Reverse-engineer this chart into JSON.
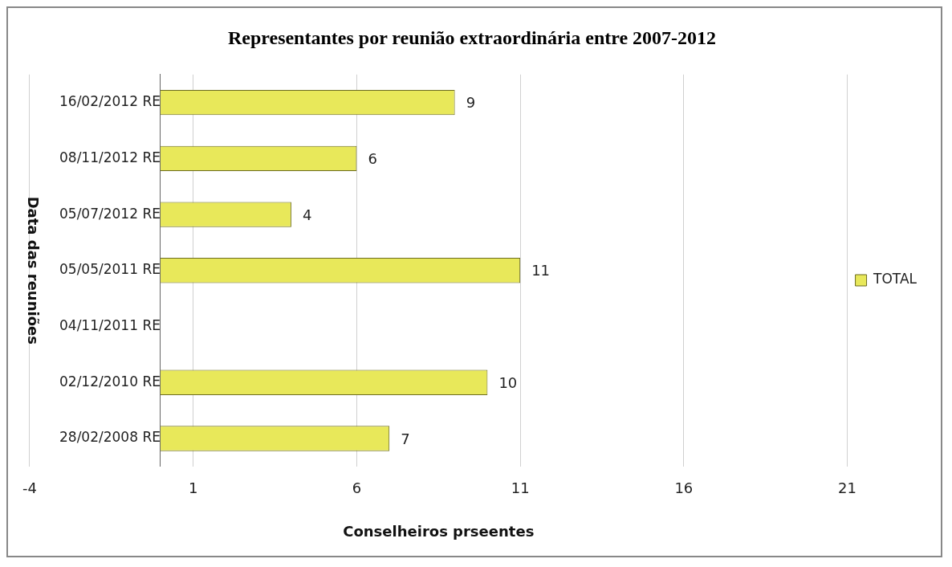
{
  "chart_data": {
    "type": "bar",
    "orientation": "horizontal",
    "title": "Representantes por reunião extraordinária entre 2007-2012",
    "xlabel": "Conselheiros prseentes",
    "ylabel": "Data das reuniões",
    "categories": [
      "16/02/2012 RE",
      "08/11/2012 RE",
      "05/07/2012 RE",
      "05/05/2011 RE",
      "04/11/2011 RE",
      "02/12/2010 RE",
      "28/02/2008 RE"
    ],
    "series": [
      {
        "name": "TOTAL",
        "color": "#e8e85a",
        "values": [
          9,
          6,
          4,
          11,
          null,
          10,
          7
        ]
      }
    ],
    "xlim": [
      -4,
      21
    ],
    "xticks": [
      -4,
      1,
      6,
      11,
      16,
      21
    ],
    "grid": "x",
    "legend": "right",
    "data_labels": true
  }
}
